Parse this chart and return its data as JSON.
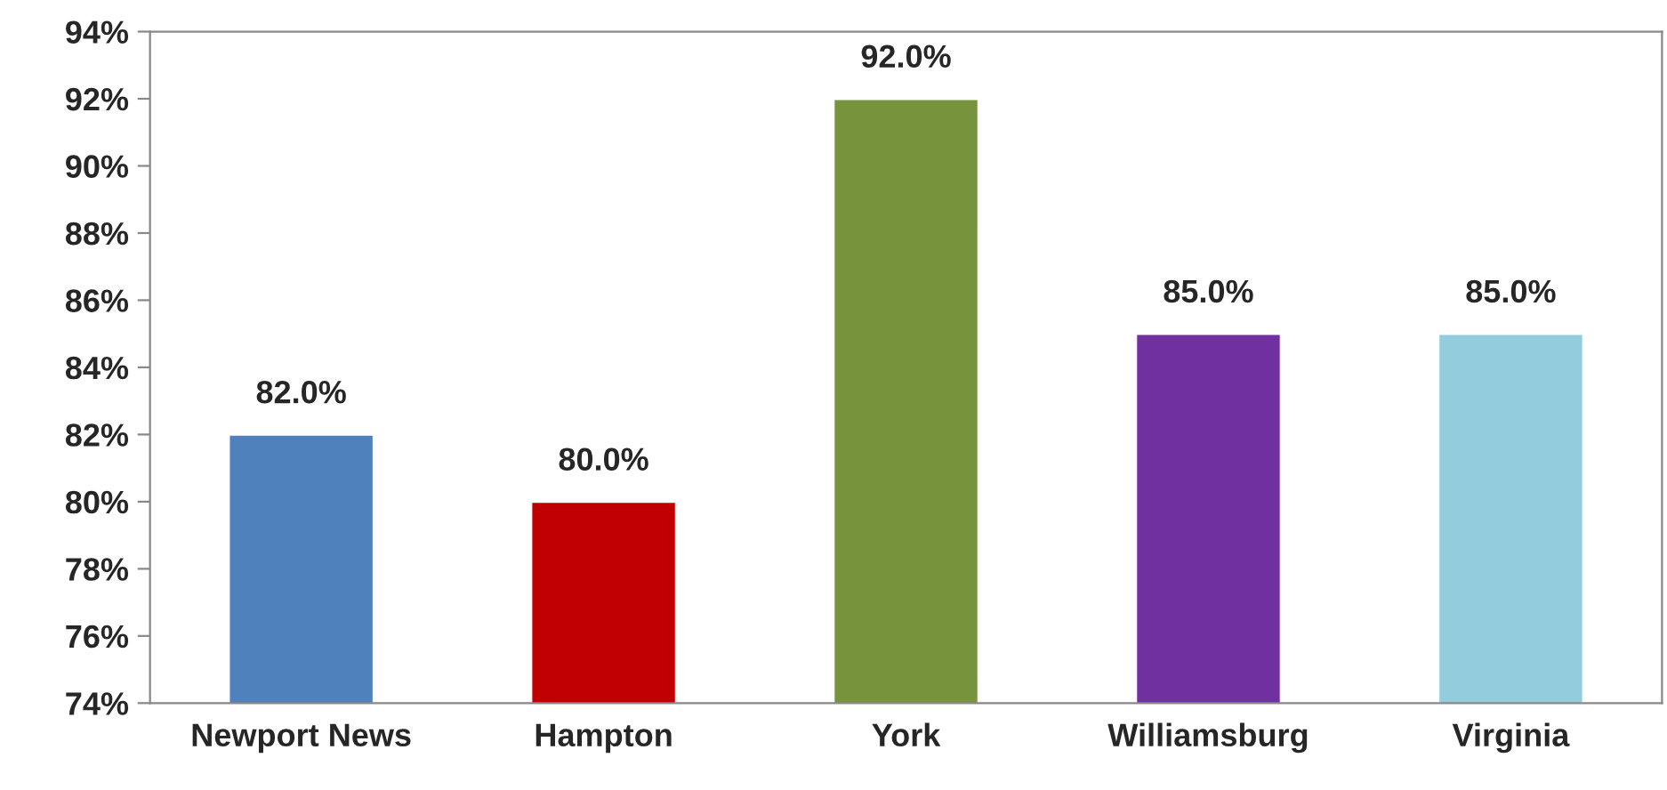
{
  "chart_data": {
    "type": "bar",
    "categories": [
      "Newport News",
      "Hampton",
      "York",
      "Williamsburg",
      "Virginia"
    ],
    "values": [
      82,
      80,
      92,
      85,
      85
    ],
    "colors": [
      "#4f81bd",
      "#c00000",
      "#77933c",
      "#7030a0",
      "#93cddd"
    ],
    "value_labels": [
      "82.0%",
      "80.0%",
      "92.0%",
      "85.0%",
      "85.0%"
    ],
    "ylim": [
      74,
      94
    ],
    "yticks": [
      {
        "value": 74,
        "label": "74%"
      },
      {
        "value": 76,
        "label": "76%"
      },
      {
        "value": 78,
        "label": "78%"
      },
      {
        "value": 80,
        "label": "80%"
      },
      {
        "value": 82,
        "label": "82%"
      },
      {
        "value": 84,
        "label": "84%"
      },
      {
        "value": 86,
        "label": "86%"
      },
      {
        "value": 88,
        "label": "88%"
      },
      {
        "value": 90,
        "label": "90%"
      },
      {
        "value": 92,
        "label": "92%"
      },
      {
        "value": 94,
        "label": "94%"
      }
    ],
    "grid": false,
    "legend": false
  }
}
